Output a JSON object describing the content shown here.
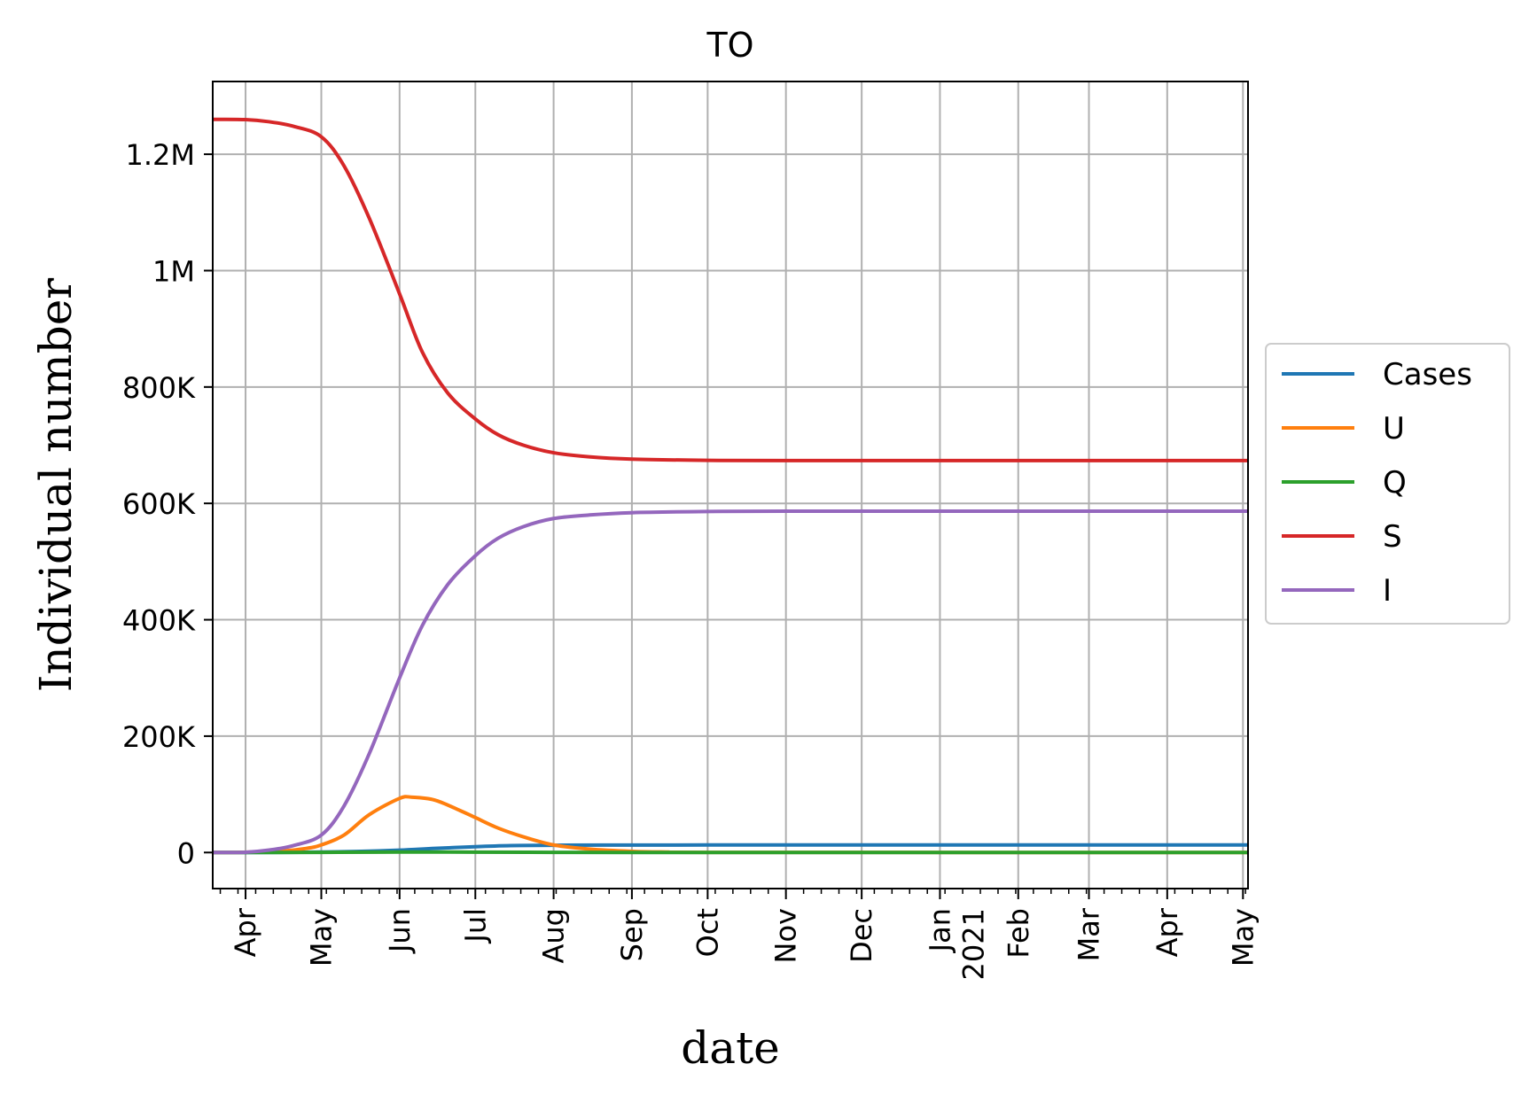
{
  "chart_data": {
    "type": "line",
    "title": "TO",
    "xlabel": "date",
    "ylabel": "Individual number",
    "x_tick_labels": [
      "Apr",
      "May",
      "Jun",
      "Jul",
      "Aug",
      "Sep",
      "Oct",
      "Nov",
      "Dec",
      "Jan\n2021",
      "Feb",
      "Mar",
      "Apr",
      "May"
    ],
    "y_tick_labels": [
      "0",
      "200K",
      "400K",
      "600K",
      "800K",
      "1M",
      "1.2M"
    ],
    "ylim": [
      -62000,
      1325000
    ],
    "xlim": [
      "2020-03-19",
      "2021-05-03"
    ],
    "grid": true,
    "legend_position": "right",
    "series": [
      {
        "name": "Cases",
        "color": "#1f77b4",
        "x": [
          "2020-03-19",
          "2020-04-01",
          "2020-04-15",
          "2020-05-01",
          "2020-05-15",
          "2020-06-01",
          "2020-06-15",
          "2020-07-01",
          "2020-07-15",
          "2020-08-01",
          "2020-09-01",
          "2020-10-01",
          "2021-01-01",
          "2021-05-03"
        ],
        "y": [
          0,
          50,
          200,
          800,
          1800,
          4000,
          7000,
          10000,
          11800,
          12500,
          12800,
          12900,
          12900,
          12900
        ]
      },
      {
        "name": "U",
        "color": "#ff7f0e",
        "x": [
          "2020-03-19",
          "2020-04-01",
          "2020-04-15",
          "2020-04-25",
          "2020-05-01",
          "2020-05-10",
          "2020-05-20",
          "2020-06-01",
          "2020-06-06",
          "2020-06-15",
          "2020-06-25",
          "2020-07-01",
          "2020-07-10",
          "2020-07-20",
          "2020-08-01",
          "2020-08-15",
          "2020-09-01",
          "2020-09-15",
          "2020-10-01",
          "2021-05-03"
        ],
        "y": [
          0,
          500,
          2500,
          7000,
          13000,
          30000,
          65000,
          93000,
          95000,
          90000,
          72000,
          60000,
          42000,
          27000,
          13000,
          6000,
          2000,
          800,
          300,
          0
        ]
      },
      {
        "name": "Q",
        "color": "#2ca02c",
        "x": [
          "2020-03-19",
          "2020-05-01",
          "2020-06-01",
          "2020-07-01",
          "2020-08-01",
          "2020-09-01",
          "2021-05-03"
        ],
        "y": [
          0,
          200,
          800,
          700,
          300,
          100,
          0
        ]
      },
      {
        "name": "S",
        "color": "#d62728",
        "x": [
          "2020-03-19",
          "2020-04-01",
          "2020-04-10",
          "2020-04-20",
          "2020-05-01",
          "2020-05-10",
          "2020-05-20",
          "2020-06-01",
          "2020-06-10",
          "2020-06-20",
          "2020-07-01",
          "2020-07-10",
          "2020-07-20",
          "2020-08-01",
          "2020-08-15",
          "2020-09-01",
          "2020-10-01",
          "2020-11-01",
          "2021-05-03"
        ],
        "y": [
          1260000,
          1259500,
          1256000,
          1248000,
          1230000,
          1180000,
          1090000,
          960000,
          860000,
          790000,
          745000,
          718000,
          700000,
          687000,
          680000,
          676000,
          674000,
          673500,
          673500
        ]
      },
      {
        "name": "I",
        "color": "#9467bd",
        "x": [
          "2020-03-19",
          "2020-04-01",
          "2020-04-10",
          "2020-04-20",
          "2020-05-01",
          "2020-05-10",
          "2020-05-20",
          "2020-06-01",
          "2020-06-10",
          "2020-06-20",
          "2020-07-01",
          "2020-07-10",
          "2020-07-20",
          "2020-08-01",
          "2020-08-15",
          "2020-09-01",
          "2020-10-01",
          "2020-11-01",
          "2021-05-03"
        ],
        "y": [
          0,
          500,
          4000,
          12000,
          30000,
          80000,
          170000,
          300000,
          390000,
          460000,
          510000,
          540000,
          560000,
          574000,
          580000,
          584000,
          586000,
          586500,
          586500
        ]
      }
    ]
  }
}
